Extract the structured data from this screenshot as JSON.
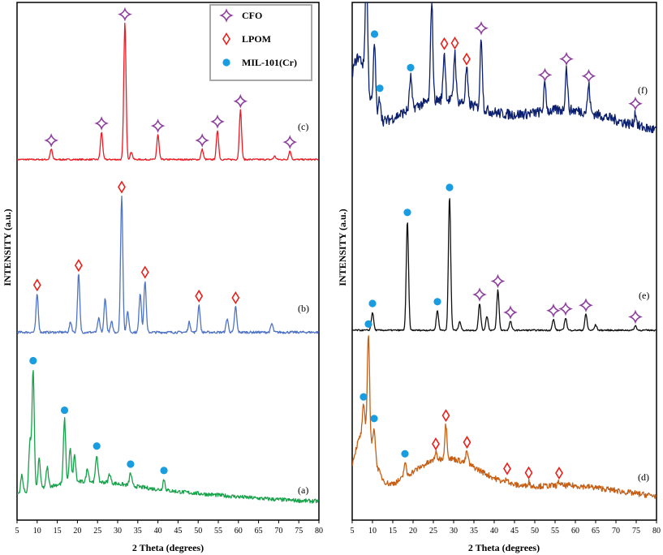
{
  "colors": {
    "cfo_marker": "#8e3f9e",
    "lpom_marker": "#e8201c",
    "mil_marker": "#1a9de0",
    "trace_a": "#17a24a",
    "trace_b": "#4f74c4",
    "trace_c": "#ec1c24",
    "trace_d": "#c65f15",
    "trace_e": "#111111",
    "trace_f": "#0b1f6e"
  },
  "legend": [
    {
      "marker": "star",
      "label": "CFO"
    },
    {
      "marker": "diamond",
      "label": "LPOM"
    },
    {
      "marker": "circle",
      "label": "MIL-101(Cr)"
    }
  ],
  "chart_data": [
    {
      "type": "line",
      "panel": "left",
      "xlabel": "2 Theta (degrees)",
      "ylabel": "INTENSITY (a.u.)",
      "xlim": [
        5,
        80
      ],
      "xticks": [
        5,
        10,
        15,
        20,
        25,
        30,
        35,
        40,
        45,
        50,
        55,
        60,
        65,
        70,
        75,
        80
      ],
      "grid": false,
      "series": [
        {
          "name": "(c)",
          "color": "#ec1c24",
          "baseline": 8,
          "noise": 0.9,
          "halo": [],
          "peaks": [
            {
              "x": 13.5,
              "y": 12,
              "marker": "star"
            },
            {
              "x": 26.0,
              "y": 32,
              "marker": "star"
            },
            {
              "x": 31.8,
              "y": 160,
              "marker": "star"
            },
            {
              "x": 40.0,
              "y": 29,
              "marker": "star"
            },
            {
              "x": 51.0,
              "y": 12,
              "marker": "star"
            },
            {
              "x": 54.8,
              "y": 34,
              "marker": "star"
            },
            {
              "x": 60.5,
              "y": 58,
              "marker": "star"
            },
            {
              "x": 72.8,
              "y": 10,
              "marker": "star"
            }
          ],
          "extra_peaks": [
            {
              "x": 33.4,
              "y": 9
            },
            {
              "x": 69.0,
              "y": 4
            }
          ]
        },
        {
          "name": "(b)",
          "color": "#4f74c4",
          "baseline": 10,
          "noise": 1.4,
          "halo": [],
          "peaks": [
            {
              "x": 10.0,
              "y": 45,
              "marker": "diamond"
            },
            {
              "x": 20.3,
              "y": 68,
              "marker": "diamond"
            },
            {
              "x": 31.0,
              "y": 160,
              "marker": "diamond"
            },
            {
              "x": 36.8,
              "y": 60,
              "marker": "diamond"
            },
            {
              "x": 50.2,
              "y": 32,
              "marker": "diamond"
            },
            {
              "x": 59.3,
              "y": 30,
              "marker": "diamond"
            }
          ],
          "extra_peaks": [
            {
              "x": 18.3,
              "y": 12
            },
            {
              "x": 25.3,
              "y": 16
            },
            {
              "x": 26.9,
              "y": 40
            },
            {
              "x": 28.5,
              "y": 12
            },
            {
              "x": 32.5,
              "y": 24
            },
            {
              "x": 35.6,
              "y": 46
            },
            {
              "x": 47.8,
              "y": 12
            },
            {
              "x": 57.2,
              "y": 16
            },
            {
              "x": 68.3,
              "y": 10
            }
          ]
        },
        {
          "name": "(a)",
          "color": "#17a24a",
          "baseline": 10,
          "noise": 2.2,
          "halo": [
            {
              "x": 20,
              "y": 18,
              "w": 12
            },
            {
              "x": 42,
              "y": 10,
              "w": 18
            }
          ],
          "peaks": [
            {
              "x": 9.0,
              "y": 135,
              "marker": "circle"
            },
            {
              "x": 16.8,
              "y": 72,
              "marker": "circle"
            },
            {
              "x": 24.8,
              "y": 30,
              "marker": "circle"
            },
            {
              "x": 33.2,
              "y": 14,
              "marker": "circle"
            },
            {
              "x": 41.5,
              "y": 12,
              "marker": "circle"
            }
          ],
          "extra_peaks": [
            {
              "x": 6.2,
              "y": 20
            },
            {
              "x": 8.2,
              "y": 55
            },
            {
              "x": 10.5,
              "y": 34
            },
            {
              "x": 12.5,
              "y": 22
            },
            {
              "x": 18.2,
              "y": 38
            },
            {
              "x": 19.3,
              "y": 30
            },
            {
              "x": 22.5,
              "y": 15
            },
            {
              "x": 28.0,
              "y": 10
            }
          ]
        }
      ]
    },
    {
      "type": "line",
      "panel": "right",
      "xlabel": "2 Theta (degrees)",
      "ylabel": "INTENSITY (a.u.)",
      "xlim": [
        5,
        80
      ],
      "xticks": [
        5,
        10,
        15,
        20,
        25,
        30,
        35,
        40,
        45,
        50,
        55,
        60,
        65,
        70,
        75,
        80
      ],
      "grid": false,
      "series": [
        {
          "name": "(f)",
          "color": "#0b1f6e",
          "baseline": 14,
          "noise": 6.5,
          "halo": [
            {
              "x": 6.5,
              "y": 90,
              "w": 2.2
            },
            {
              "x": 27,
              "y": 42,
              "w": 10
            },
            {
              "x": 58,
              "y": 30,
              "w": 12
            }
          ],
          "peaks": [
            {
              "x": 8.5,
              "y": 145,
              "marker": "circle"
            },
            {
              "x": 10.5,
              "y": 85,
              "marker": "circle"
            },
            {
              "x": 11.8,
              "y": 28,
              "marker": "circle"
            },
            {
              "x": 19.4,
              "y": 40,
              "marker": "circle"
            },
            {
              "x": 24.6,
              "y": 125,
              "marker": "diamond"
            },
            {
              "x": 27.7,
              "y": 58,
              "marker": "diamond"
            },
            {
              "x": 30.3,
              "y": 60,
              "marker": "diamond"
            },
            {
              "x": 33.2,
              "y": 44,
              "marker": "diamond"
            },
            {
              "x": 36.8,
              "y": 88,
              "marker": "star"
            },
            {
              "x": 52.5,
              "y": 34,
              "marker": "star"
            },
            {
              "x": 57.8,
              "y": 52,
              "marker": "star"
            },
            {
              "x": 63.3,
              "y": 34,
              "marker": "star"
            },
            {
              "x": 74.8,
              "y": 16,
              "marker": "star"
            }
          ],
          "extra_peaks": []
        },
        {
          "name": "(e)",
          "color": "#111111",
          "baseline": 10,
          "noise": 0.8,
          "halo": [],
          "peaks": [
            {
              "x": 10.0,
              "y": 20,
              "marker": "circle"
            },
            {
              "x": 18.6,
              "y": 122,
              "marker": "circle"
            },
            {
              "x": 26.0,
              "y": 22,
              "marker": "circle"
            },
            {
              "x": 29.0,
              "y": 150,
              "marker": "circle"
            },
            {
              "x": 36.4,
              "y": 30,
              "marker": "star"
            },
            {
              "x": 40.9,
              "y": 45,
              "marker": "star"
            },
            {
              "x": 44.0,
              "y": 10,
              "marker": "star"
            },
            {
              "x": 54.6,
              "y": 12,
              "marker": "star"
            },
            {
              "x": 57.6,
              "y": 14,
              "marker": "star"
            },
            {
              "x": 62.6,
              "y": 18,
              "marker": "star"
            },
            {
              "x": 74.8,
              "y": 5,
              "marker": "star"
            }
          ],
          "extra_peaks": [
            {
              "x": 31.5,
              "y": 10
            },
            {
              "x": 38.2,
              "y": 16
            },
            {
              "x": 65.0,
              "y": 6
            }
          ]
        },
        {
          "name": "(d)",
          "color": "#c65f15",
          "baseline": 10,
          "noise": 3.2,
          "halo": [
            {
              "x": 7.8,
              "y": 70,
              "w": 2.5
            },
            {
              "x": 28,
              "y": 44,
              "w": 9
            },
            {
              "x": 58,
              "y": 14,
              "w": 12
            }
          ],
          "peaks": [
            {
              "x": 7.8,
              "y": 30,
              "marker": "circle"
            },
            {
              "x": 9.0,
              "y": 118,
              "marker": "circle"
            },
            {
              "x": 10.4,
              "y": 32,
              "marker": "circle"
            },
            {
              "x": 18.0,
              "y": 16,
              "marker": "circle"
            },
            {
              "x": 25.6,
              "y": 8,
              "marker": "diamond"
            },
            {
              "x": 28.1,
              "y": 38,
              "marker": "diamond"
            },
            {
              "x": 33.3,
              "y": 14,
              "marker": "diamond"
            },
            {
              "x": 43.2,
              "y": 6,
              "marker": "diamond"
            },
            {
              "x": 48.5,
              "y": 5,
              "marker": "diamond"
            },
            {
              "x": 56.0,
              "y": 4,
              "marker": "diamond"
            }
          ],
          "extra_peaks": []
        }
      ]
    }
  ]
}
